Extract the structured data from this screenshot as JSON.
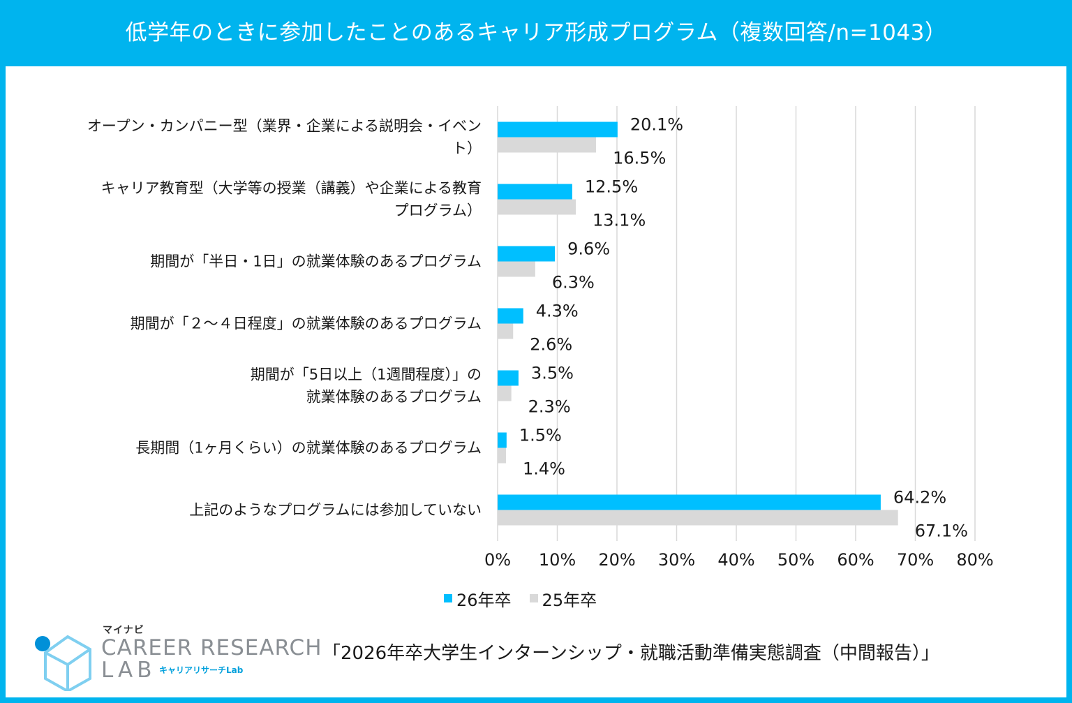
{
  "header": {
    "title": "低学年のときに参加したことのあるキャリア形成プログラム（複数回答/n=1043）"
  },
  "colors": {
    "accent": "#00B4EE",
    "series_26": "#00BFFF",
    "series_25": "#D9D9D9",
    "grid": "#D9D9D9"
  },
  "chart_data": {
    "type": "bar",
    "orientation": "horizontal",
    "title": "低学年のときに参加したことのあるキャリア形成プログラム（複数回答/n=1043）",
    "categories": [
      [
        "オープン・カンパニー型（業界・企業による説明会・イベン",
        "ト）"
      ],
      [
        "キャリア教育型（大学等の授業（講義）や企業による教育",
        "プログラム）"
      ],
      [
        "期間が「半日・1日」の就業体験のあるプログラム"
      ],
      [
        "期間が「２～４日程度」の就業体験のあるプログラム"
      ],
      [
        "期間が「5日以上（1週間程度）」の",
        "就業体験のあるプログラム"
      ],
      [
        "長期間（1ヶ月くらい）の就業体験のあるプログラム"
      ],
      [
        "上記のようなプログラムには参加していない"
      ]
    ],
    "series": [
      {
        "name": "26年卒",
        "values": [
          20.1,
          12.5,
          9.6,
          4.3,
          3.5,
          1.5,
          64.2
        ],
        "labels": [
          "20.1%",
          "12.5%",
          "9.6%",
          "4.3%",
          "3.5%",
          "1.5%",
          "64.2%"
        ]
      },
      {
        "name": "25年卒",
        "values": [
          16.5,
          13.1,
          6.3,
          2.6,
          2.3,
          1.4,
          67.1
        ],
        "labels": [
          "16.5%",
          "13.1%",
          "6.3%",
          "2.6%",
          "2.3%",
          "1.4%",
          "67.1%"
        ]
      }
    ],
    "xlim": [
      0,
      80
    ],
    "xticks": [
      0,
      10,
      20,
      30,
      40,
      50,
      60,
      70,
      80
    ],
    "xtick_labels": [
      "0%",
      "10%",
      "20%",
      "30%",
      "40%",
      "50%",
      "60%",
      "70%",
      "80%"
    ],
    "grid": true,
    "legend_position": "bottom"
  },
  "legend": {
    "items": [
      "26年卒",
      "25年卒"
    ]
  },
  "logo": {
    "brand": "マイナビ",
    "line1": "CAREER RESEARCH",
    "line2": "LAB",
    "sub": "キャリアリサーチLab"
  },
  "footer": {
    "source": "「2026年卒大学生インターンシップ・就職活動準備実態調査（中間報告）」"
  }
}
